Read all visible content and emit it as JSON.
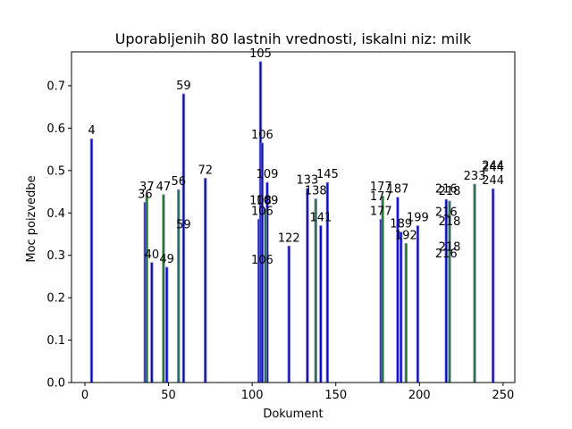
{
  "chart_data": {
    "type": "bar",
    "title": "Uporabljenih 80 lastnih vrednosti, iskalni niz: milk",
    "xlabel": "Dokument",
    "ylabel": "Moc poizvedbe",
    "xlim": [
      -8,
      257
    ],
    "ylim": [
      0,
      0.78
    ],
    "xticks": [
      0,
      50,
      100,
      150,
      200,
      250
    ],
    "yticks": [
      0.0,
      0.1,
      0.2,
      0.3,
      0.4,
      0.5,
      0.6,
      0.7
    ],
    "grid": false,
    "colors": {
      "blue": "#0000ee",
      "green": "#1a7a1a",
      "edge": "#8a8acc"
    },
    "series": [
      {
        "color": "blue",
        "points": [
          {
            "x": 4,
            "y": 0.575
          },
          {
            "x": 36,
            "y": 0.425
          },
          {
            "x": 40,
            "y": 0.283
          },
          {
            "x": 49,
            "y": 0.272
          },
          {
            "x": 59,
            "y": 0.681
          },
          {
            "x": 72,
            "y": 0.482
          },
          {
            "x": 104,
            "y": 0.385
          },
          {
            "x": 105,
            "y": 0.757
          },
          {
            "x": 106,
            "y": 0.565
          },
          {
            "x": 109,
            "y": 0.472
          },
          {
            "x": 122,
            "y": 0.322
          },
          {
            "x": 133,
            "y": 0.458
          },
          {
            "x": 141,
            "y": 0.37
          },
          {
            "x": 145,
            "y": 0.472
          },
          {
            "x": 177,
            "y": 0.385
          },
          {
            "x": 187,
            "y": 0.437
          },
          {
            "x": 189,
            "y": 0.355
          },
          {
            "x": 199,
            "y": 0.37
          },
          {
            "x": 216,
            "y": 0.432
          },
          {
            "x": 244,
            "y": 0.457
          }
        ]
      },
      {
        "color": "green",
        "points": [
          {
            "x": 37,
            "y": 0.443
          },
          {
            "x": 47,
            "y": 0.443
          },
          {
            "x": 56,
            "y": 0.455
          },
          {
            "x": 108,
            "y": 0.41
          },
          {
            "x": 138,
            "y": 0.433
          },
          {
            "x": 178,
            "y": 0.44
          },
          {
            "x": 192,
            "y": 0.328
          },
          {
            "x": 218,
            "y": 0.428
          },
          {
            "x": 233,
            "y": 0.468
          }
        ]
      }
    ],
    "labels": [
      {
        "text": "4",
        "x": 4,
        "y": 0.575
      },
      {
        "text": "36",
        "x": 36,
        "y": 0.425
      },
      {
        "text": "37",
        "x": 37,
        "y": 0.443
      },
      {
        "text": "40",
        "x": 40,
        "y": 0.283
      },
      {
        "text": "47",
        "x": 47,
        "y": 0.443
      },
      {
        "text": "49",
        "x": 49,
        "y": 0.272
      },
      {
        "text": "56",
        "x": 56,
        "y": 0.455
      },
      {
        "text": "59",
        "x": 59,
        "y": 0.681
      },
      {
        "text": "59",
        "x": 59,
        "y": 0.353
      },
      {
        "text": "72",
        "x": 72,
        "y": 0.482
      },
      {
        "text": "105",
        "x": 105,
        "y": 0.757
      },
      {
        "text": "106",
        "x": 106,
        "y": 0.565
      },
      {
        "text": "109",
        "x": 109,
        "y": 0.472
      },
      {
        "text": "108",
        "x": 105,
        "y": 0.41
      },
      {
        "text": "109",
        "x": 109,
        "y": 0.41
      },
      {
        "text": "106",
        "x": 106,
        "y": 0.385
      },
      {
        "text": "106",
        "x": 106,
        "y": 0.27
      },
      {
        "text": "122",
        "x": 122,
        "y": 0.322
      },
      {
        "text": "133",
        "x": 133,
        "y": 0.458
      },
      {
        "text": "138",
        "x": 138,
        "y": 0.433
      },
      {
        "text": "141",
        "x": 141,
        "y": 0.37
      },
      {
        "text": "145",
        "x": 145,
        "y": 0.472
      },
      {
        "text": "177",
        "x": 177,
        "y": 0.443
      },
      {
        "text": "177",
        "x": 177,
        "y": 0.42
      },
      {
        "text": "177",
        "x": 177,
        "y": 0.385
      },
      {
        "text": "187",
        "x": 187,
        "y": 0.437
      },
      {
        "text": "189",
        "x": 189,
        "y": 0.355
      },
      {
        "text": "192",
        "x": 192,
        "y": 0.328
      },
      {
        "text": "199",
        "x": 199,
        "y": 0.37
      },
      {
        "text": "216",
        "x": 216,
        "y": 0.437
      },
      {
        "text": "218",
        "x": 218,
        "y": 0.432
      },
      {
        "text": "216",
        "x": 216,
        "y": 0.383
      },
      {
        "text": "218",
        "x": 218,
        "y": 0.36
      },
      {
        "text": "218",
        "x": 218,
        "y": 0.3
      },
      {
        "text": "216",
        "x": 216,
        "y": 0.285
      },
      {
        "text": "233",
        "x": 233,
        "y": 0.468
      },
      {
        "text": "244",
        "x": 244,
        "y": 0.492
      },
      {
        "text": "244",
        "x": 244,
        "y": 0.488
      },
      {
        "text": "244",
        "x": 244,
        "y": 0.457
      }
    ]
  }
}
